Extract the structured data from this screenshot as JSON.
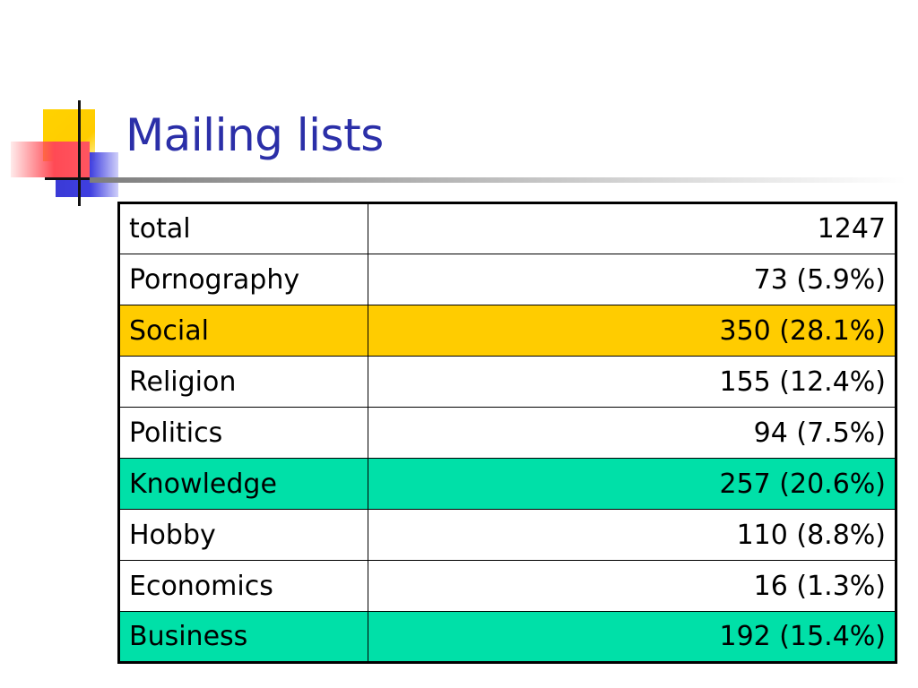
{
  "slide": {
    "title": "Mailing lists"
  },
  "table": {
    "rows": [
      {
        "label": "total",
        "value": "1247",
        "highlight": ""
      },
      {
        "label": "Pornography",
        "value": "73 (5.9%)",
        "highlight": ""
      },
      {
        "label": "Social",
        "value": "350 (28.1%)",
        "highlight": "yellow"
      },
      {
        "label": "Religion",
        "value": "155 (12.4%)",
        "highlight": ""
      },
      {
        "label": "Politics",
        "value": "94 (7.5%)",
        "highlight": ""
      },
      {
        "label": "Knowledge",
        "value": "257 (20.6%)",
        "highlight": "green"
      },
      {
        "label": "Hobby",
        "value": "110 (8.8%)",
        "highlight": ""
      },
      {
        "label": "Economics",
        "value": "16 (1.3%)",
        "highlight": ""
      },
      {
        "label": "Business",
        "value": "192 (15.4%)",
        "highlight": "green"
      }
    ]
  },
  "colors": {
    "title": "#2b2fa8",
    "highlight_yellow": "#ffcc00",
    "highlight_green": "#00e0a8"
  }
}
